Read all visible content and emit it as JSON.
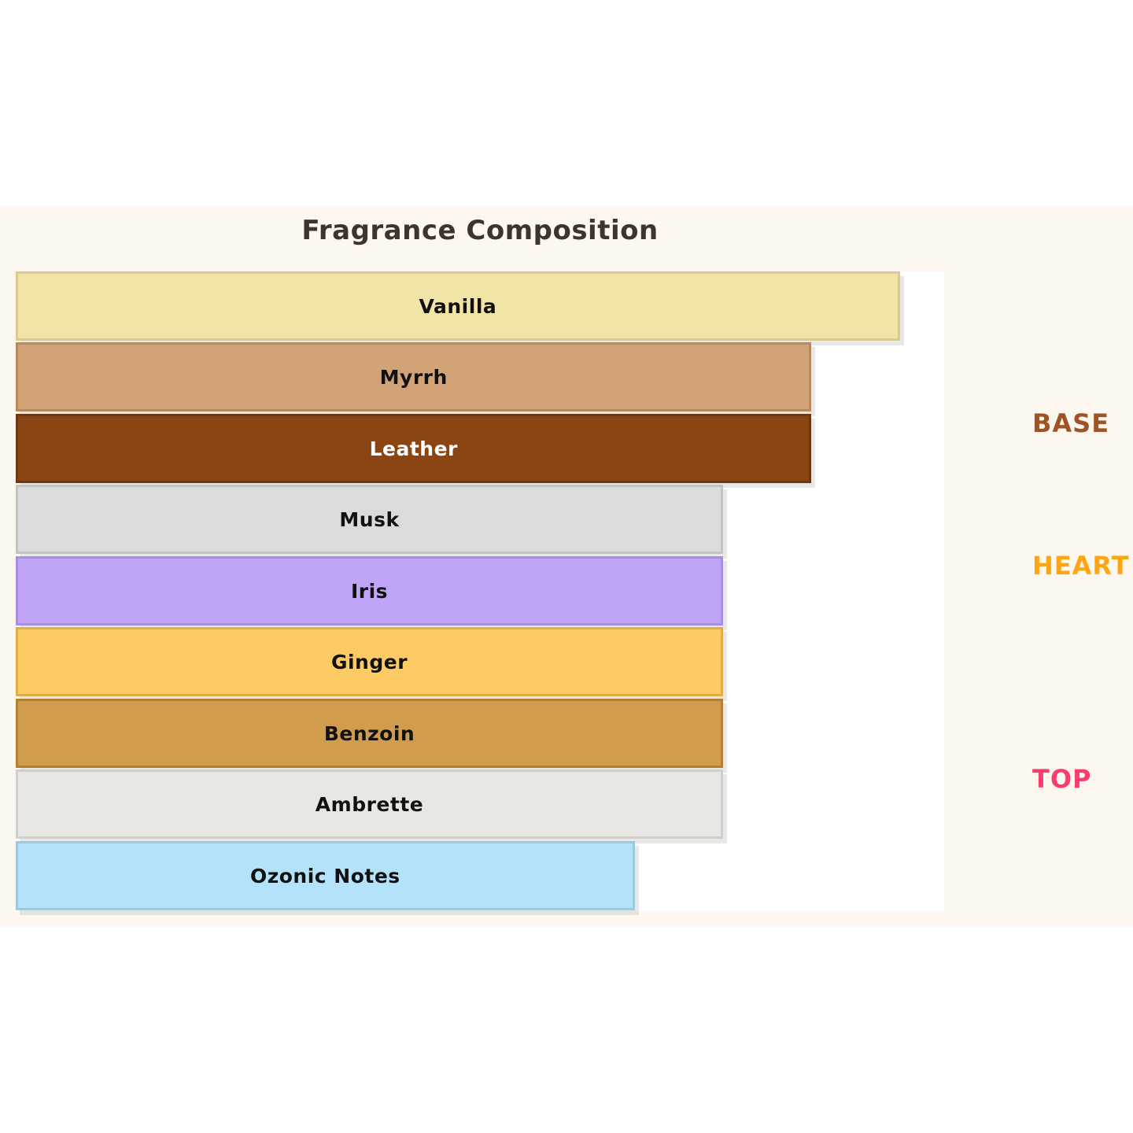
{
  "page": {
    "background": "#FFFFFF"
  },
  "figure": {
    "background": "#FCF8F0"
  },
  "chart_data": {
    "type": "bar",
    "orientation": "horizontal",
    "title": "Fragrance Composition",
    "title_color": "#3E332E",
    "xlabel": "",
    "ylabel": "",
    "xlim": [
      0,
      105
    ],
    "grid": false,
    "legend": false,
    "plot_background": "#FFFFFF",
    "categories": [
      "Vanilla",
      "Myrrh",
      "Leather",
      "Musk",
      "Iris",
      "Ginger",
      "Benzoin",
      "Ambrette",
      "Ozonic Notes"
    ],
    "values": [
      100,
      90,
      90,
      80,
      80,
      80,
      80,
      80,
      70
    ],
    "bars": [
      {
        "label": "Vanilla",
        "value": 100,
        "fill": "#F2E4A6",
        "edge": "#D9CB8F",
        "label_color": "#111111"
      },
      {
        "label": "Myrrh",
        "value": 90,
        "fill": "#D1A377",
        "edge": "#B68A5E",
        "label_color": "#111111"
      },
      {
        "label": "Leather",
        "value": 90,
        "fill": "#8B4513",
        "edge": "#6F3710",
        "label_color": "#FFFFFF"
      },
      {
        "label": "Musk",
        "value": 80,
        "fill": "#DBDBDB",
        "edge": "#C2C4BF",
        "label_color": "#111111"
      },
      {
        "label": "Iris",
        "value": 80,
        "fill": "#C0A4F8",
        "edge": "#A88FE0",
        "label_color": "#111111"
      },
      {
        "label": "Ginger",
        "value": 80,
        "fill": "#FECA64",
        "edge": "#DFAE45",
        "label_color": "#111111"
      },
      {
        "label": "Benzoin",
        "value": 80,
        "fill": "#D19C4D",
        "edge": "#B3812F",
        "label_color": "#111111"
      },
      {
        "label": "Ambrette",
        "value": 80,
        "fill": "#E8E7E4",
        "edge": "#CFCFCB",
        "label_color": "#111111"
      },
      {
        "label": "Ozonic Notes",
        "value": 70,
        "fill": "#B5E2FB",
        "edge": "#9DC9DE",
        "label_color": "#111111"
      }
    ],
    "sections": [
      {
        "label": "BASE",
        "color": "#9E5424"
      },
      {
        "label": "HEART",
        "color": "#FFA512"
      },
      {
        "label": "TOP",
        "color": "#FA3C6E"
      }
    ]
  }
}
